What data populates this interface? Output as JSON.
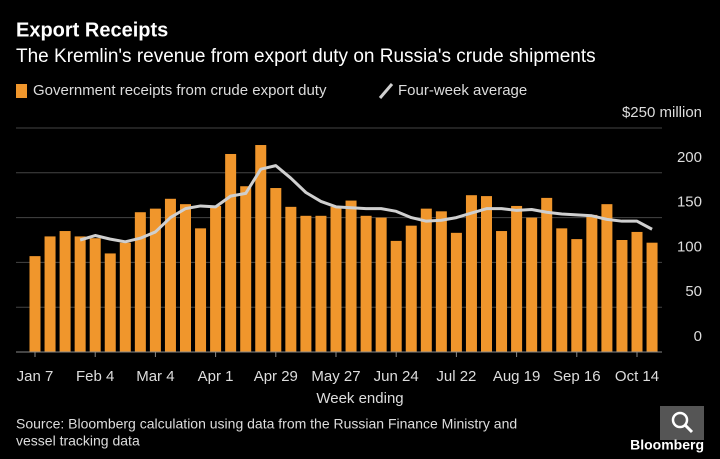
{
  "chart_data": {
    "type": "bar_line",
    "title": "Export Receipts",
    "subtitle": "The Kremlin's revenue from export duty on Russia's crude shipments",
    "xlabel": "Week ending",
    "source": "Source: Bloomberg calculation using data from the Russian Finance Ministry and vessel tracking data",
    "logo": "Bloomberg",
    "categories": [
      "Jan 7",
      null,
      null,
      null,
      "Feb 4",
      null,
      null,
      null,
      "Mar 4",
      null,
      null,
      null,
      "Apr 1",
      null,
      null,
      null,
      "Apr 29",
      null,
      null,
      null,
      "May 27",
      null,
      null,
      null,
      "Jun 24",
      null,
      null,
      null,
      "Jul 22",
      null,
      null,
      null,
      "Aug 19",
      null,
      null,
      null,
      "Sep 16",
      null,
      null,
      null,
      "Oct 14",
      null
    ],
    "series": [
      {
        "name": "Government receipts from crude export duty",
        "color": "#f0962c",
        "values": [
          107,
          129,
          135,
          129,
          127,
          110,
          122,
          156,
          160,
          171,
          165,
          138,
          163,
          221,
          185,
          231,
          183,
          162,
          152,
          152,
          162,
          169,
          152,
          150,
          124,
          141,
          160,
          157,
          133,
          175,
          174,
          135,
          163,
          150,
          172,
          138,
          126,
          153,
          165,
          125,
          134,
          122
        ]
      },
      {
        "name": "Four-week average",
        "color": "#cfcfcf",
        "values": [
          null,
          null,
          null,
          125,
          130,
          126,
          123,
          127,
          134,
          150,
          160,
          163,
          162,
          174,
          177,
          204,
          208,
          194,
          178,
          168,
          162,
          161,
          160,
          160,
          157,
          150,
          146,
          147,
          150,
          155,
          160,
          160,
          158,
          159,
          156,
          154,
          153,
          152,
          148,
          146,
          146,
          137
        ]
      }
    ],
    "ylim": [
      0,
      250
    ],
    "yticks": [
      0,
      50,
      100,
      150,
      200,
      {
        "value": 250,
        "label": "$250 million"
      }
    ],
    "grid": true
  }
}
